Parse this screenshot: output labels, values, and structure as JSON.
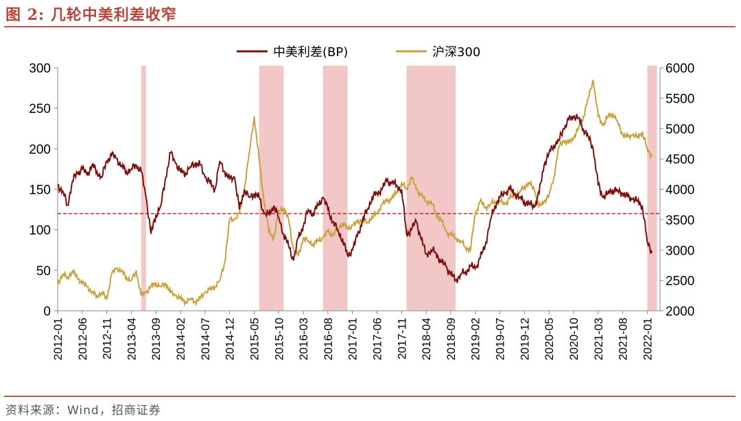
{
  "header": {
    "title": "图 2:  几轮中美利差收窄"
  },
  "footer": {
    "source": "资料来源：Wind，招商证券"
  },
  "colors": {
    "spread": "#7b0f0f",
    "csi300": "#c9a13c",
    "shade": "#f2c7c7",
    "refline": "#c00000",
    "accent": "#c0504d"
  },
  "chart_data": {
    "type": "line",
    "title": "几轮中美利差收窄",
    "x_ticks": [
      "2012-01",
      "2012-06",
      "2012-11",
      "2013-04",
      "2013-09",
      "2014-02",
      "2014-07",
      "2014-12",
      "2015-05",
      "2015-10",
      "2016-03",
      "2016-08",
      "2017-01",
      "2017-06",
      "2017-11",
      "2018-04",
      "2018-09",
      "2019-02",
      "2019-07",
      "2019-12",
      "2020-05",
      "2020-10",
      "2021-03",
      "2021-08",
      "2022-01"
    ],
    "y_left": {
      "min": 0,
      "max": 300,
      "ticks": [
        0,
        50,
        100,
        150,
        200,
        250,
        300
      ],
      "label": "中美利差(BP)"
    },
    "y_right": {
      "min": 2000,
      "max": 6000,
      "ticks": [
        2000,
        2500,
        3000,
        3500,
        4000,
        4500,
        5000,
        5500,
        6000
      ],
      "label": "沪深300"
    },
    "reference_line": {
      "axis": "left",
      "value": 120
    },
    "shaded_periods": [
      [
        "2013-06",
        "2013-07"
      ],
      [
        "2015-06",
        "2015-11"
      ],
      [
        "2016-07",
        "2016-12"
      ],
      [
        "2017-12",
        "2018-10"
      ],
      [
        "2022-01",
        "2022-03"
      ]
    ],
    "legend": [
      "中美利差(BP)",
      "沪深300"
    ],
    "series": [
      {
        "name": "中美利差(BP)",
        "axis": "left",
        "x": [
          "2012-01",
          "2012-02",
          "2012-03",
          "2012-04",
          "2012-05",
          "2012-06",
          "2012-07",
          "2012-08",
          "2012-09",
          "2012-10",
          "2012-11",
          "2012-12",
          "2013-01",
          "2013-02",
          "2013-03",
          "2013-04",
          "2013-05",
          "2013-06",
          "2013-07",
          "2013-08",
          "2013-09",
          "2013-10",
          "2013-11",
          "2013-12",
          "2014-01",
          "2014-02",
          "2014-03",
          "2014-04",
          "2014-05",
          "2014-06",
          "2014-07",
          "2014-08",
          "2014-09",
          "2014-10",
          "2014-11",
          "2014-12",
          "2015-01",
          "2015-02",
          "2015-03",
          "2015-04",
          "2015-05",
          "2015-06",
          "2015-07",
          "2015-08",
          "2015-09",
          "2015-10",
          "2015-11",
          "2015-12",
          "2016-01",
          "2016-02",
          "2016-03",
          "2016-04",
          "2016-05",
          "2016-06",
          "2016-07",
          "2016-08",
          "2016-09",
          "2016-10",
          "2016-11",
          "2016-12",
          "2017-01",
          "2017-02",
          "2017-03",
          "2017-04",
          "2017-05",
          "2017-06",
          "2017-07",
          "2017-08",
          "2017-09",
          "2017-10",
          "2017-11",
          "2017-12",
          "2018-01",
          "2018-02",
          "2018-03",
          "2018-04",
          "2018-05",
          "2018-06",
          "2018-07",
          "2018-08",
          "2018-09",
          "2018-10",
          "2018-11",
          "2018-12",
          "2019-01",
          "2019-02",
          "2019-03",
          "2019-04",
          "2019-05",
          "2019-06",
          "2019-07",
          "2019-08",
          "2019-09",
          "2019-10",
          "2019-11",
          "2019-12",
          "2020-01",
          "2020-02",
          "2020-03",
          "2020-04",
          "2020-05",
          "2020-06",
          "2020-07",
          "2020-08",
          "2020-09",
          "2020-10",
          "2020-11",
          "2020-12",
          "2021-01",
          "2021-02",
          "2021-03",
          "2021-04",
          "2021-05",
          "2021-06",
          "2021-07",
          "2021-08",
          "2021-09",
          "2021-10",
          "2021-11",
          "2021-12",
          "2022-01",
          "2022-02"
        ],
        "values": [
          155,
          148,
          130,
          160,
          170,
          175,
          168,
          180,
          172,
          165,
          185,
          192,
          188,
          178,
          172,
          175,
          180,
          172,
          140,
          95,
          118,
          130,
          165,
          195,
          182,
          172,
          170,
          178,
          182,
          180,
          165,
          158,
          150,
          185,
          172,
          162,
          165,
          125,
          150,
          140,
          145,
          140,
          120,
          118,
          130,
          115,
          95,
          80,
          62,
          90,
          105,
          125,
          120,
          130,
          140,
          125,
          110,
          100,
          88,
          68,
          75,
          92,
          110,
          125,
          140,
          145,
          150,
          160,
          158,
          155,
          150,
          95,
          100,
          110,
          88,
          70,
          75,
          72,
          60,
          55,
          45,
          38,
          45,
          48,
          55,
          52,
          65,
          80,
          110,
          130,
          140,
          145,
          150,
          145,
          140,
          135,
          132,
          128,
          145,
          180,
          195,
          205,
          210,
          225,
          235,
          240,
          238,
          225,
          215,
          200,
          155,
          140,
          145,
          150,
          148,
          145,
          140,
          138,
          135,
          130,
          85,
          72
        ]
      },
      {
        "name": "沪深300",
        "axis": "right",
        "x": [
          "2012-01",
          "2012-02",
          "2012-03",
          "2012-04",
          "2012-05",
          "2012-06",
          "2012-07",
          "2012-08",
          "2012-09",
          "2012-10",
          "2012-11",
          "2012-12",
          "2013-01",
          "2013-02",
          "2013-03",
          "2013-04",
          "2013-05",
          "2013-06",
          "2013-07",
          "2013-08",
          "2013-09",
          "2013-10",
          "2013-11",
          "2013-12",
          "2014-01",
          "2014-02",
          "2014-03",
          "2014-04",
          "2014-05",
          "2014-06",
          "2014-07",
          "2014-08",
          "2014-09",
          "2014-10",
          "2014-11",
          "2014-12",
          "2015-01",
          "2015-02",
          "2015-03",
          "2015-04",
          "2015-05",
          "2015-06",
          "2015-07",
          "2015-08",
          "2015-09",
          "2015-10",
          "2015-11",
          "2015-12",
          "2016-01",
          "2016-02",
          "2016-03",
          "2016-04",
          "2016-05",
          "2016-06",
          "2016-07",
          "2016-08",
          "2016-09",
          "2016-10",
          "2016-11",
          "2016-12",
          "2017-01",
          "2017-02",
          "2017-03",
          "2017-04",
          "2017-05",
          "2017-06",
          "2017-07",
          "2017-08",
          "2017-09",
          "2017-10",
          "2017-11",
          "2017-12",
          "2018-01",
          "2018-02",
          "2018-03",
          "2018-04",
          "2018-05",
          "2018-06",
          "2018-07",
          "2018-08",
          "2018-09",
          "2018-10",
          "2018-11",
          "2018-12",
          "2019-01",
          "2019-02",
          "2019-03",
          "2019-04",
          "2019-05",
          "2019-06",
          "2019-07",
          "2019-08",
          "2019-09",
          "2019-10",
          "2019-11",
          "2019-12",
          "2020-01",
          "2020-02",
          "2020-03",
          "2020-04",
          "2020-05",
          "2020-06",
          "2020-07",
          "2020-08",
          "2020-09",
          "2020-10",
          "2020-11",
          "2020-12",
          "2021-01",
          "2021-02",
          "2021-03",
          "2021-04",
          "2021-05",
          "2021-06",
          "2021-07",
          "2021-08",
          "2021-09",
          "2021-10",
          "2021-11",
          "2021-12",
          "2022-01",
          "2022-02"
        ],
        "values": [
          2450,
          2600,
          2550,
          2650,
          2550,
          2450,
          2400,
          2300,
          2250,
          2300,
          2200,
          2600,
          2700,
          2650,
          2550,
          2500,
          2650,
          2250,
          2300,
          2400,
          2450,
          2400,
          2450,
          2300,
          2250,
          2200,
          2150,
          2200,
          2150,
          2200,
          2300,
          2350,
          2400,
          2500,
          2800,
          3500,
          3500,
          3600,
          4000,
          4600,
          5200,
          4500,
          3800,
          3300,
          3200,
          3650,
          3700,
          3500,
          3000,
          2900,
          3200,
          3150,
          3100,
          3150,
          3200,
          3300,
          3250,
          3350,
          3450,
          3350,
          3400,
          3450,
          3500,
          3450,
          3550,
          3600,
          3750,
          3800,
          3850,
          3950,
          4100,
          4000,
          4200,
          4000,
          3900,
          3800,
          3800,
          3600,
          3500,
          3300,
          3250,
          3200,
          3150,
          3050,
          3000,
          3600,
          3800,
          3700,
          3750,
          3800,
          3800,
          3750,
          3850,
          3900,
          3950,
          4050,
          4100,
          4000,
          3700,
          3800,
          3900,
          4200,
          4700,
          4800,
          4750,
          4850,
          5000,
          5200,
          5500,
          5800,
          5200,
          5050,
          5200,
          5250,
          5100,
          4900,
          4850,
          4900,
          4850,
          4950,
          4650,
          4550
        ]
      }
    ]
  }
}
